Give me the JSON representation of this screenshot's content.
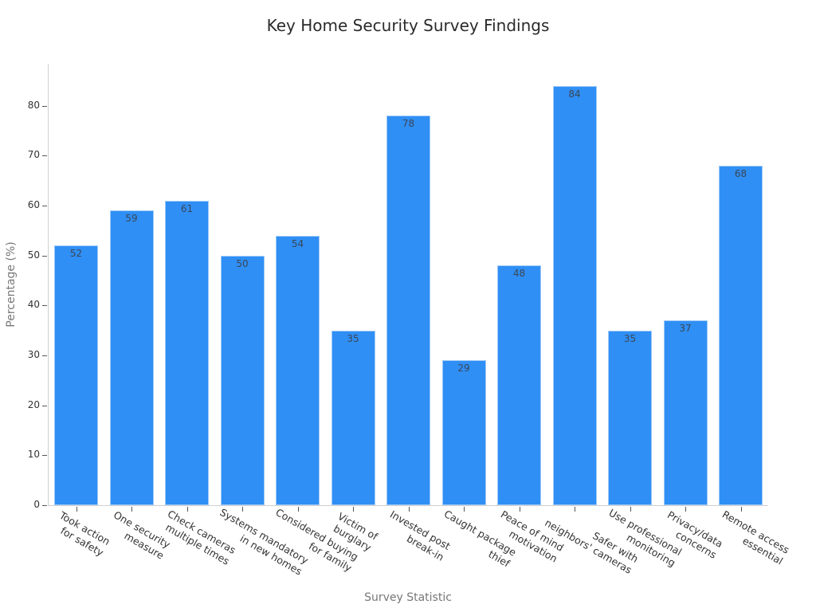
{
  "chart_data": {
    "type": "bar",
    "title": "Key Home Security Survey Findings",
    "xlabel": "Survey Statistic",
    "ylabel": "Percentage (%)",
    "ylim": [
      0,
      88
    ],
    "yticks": [
      0,
      10,
      20,
      30,
      40,
      50,
      60,
      70,
      80
    ],
    "grid": false,
    "legend": null,
    "bar_color": "#2f8ff5",
    "categories": [
      "Took action\nfor safety",
      "One security\nmeasure",
      "Check cameras\nmultiple times",
      "Systems mandatory\nin new homes",
      "Considered buying\nfor family",
      "Victim of\nburglary",
      "Invested post\nbreak-in",
      "Caught package\nthief",
      "Peace of mind\nmotivation",
      "Safer with\nneighbors' cameras",
      "Use professional\nmonitoring",
      "Privacy/data\nconcerns",
      "Remote access\nessential"
    ],
    "values": [
      52,
      59,
      61,
      50,
      54,
      35,
      78,
      29,
      48,
      84,
      35,
      37,
      68
    ]
  }
}
